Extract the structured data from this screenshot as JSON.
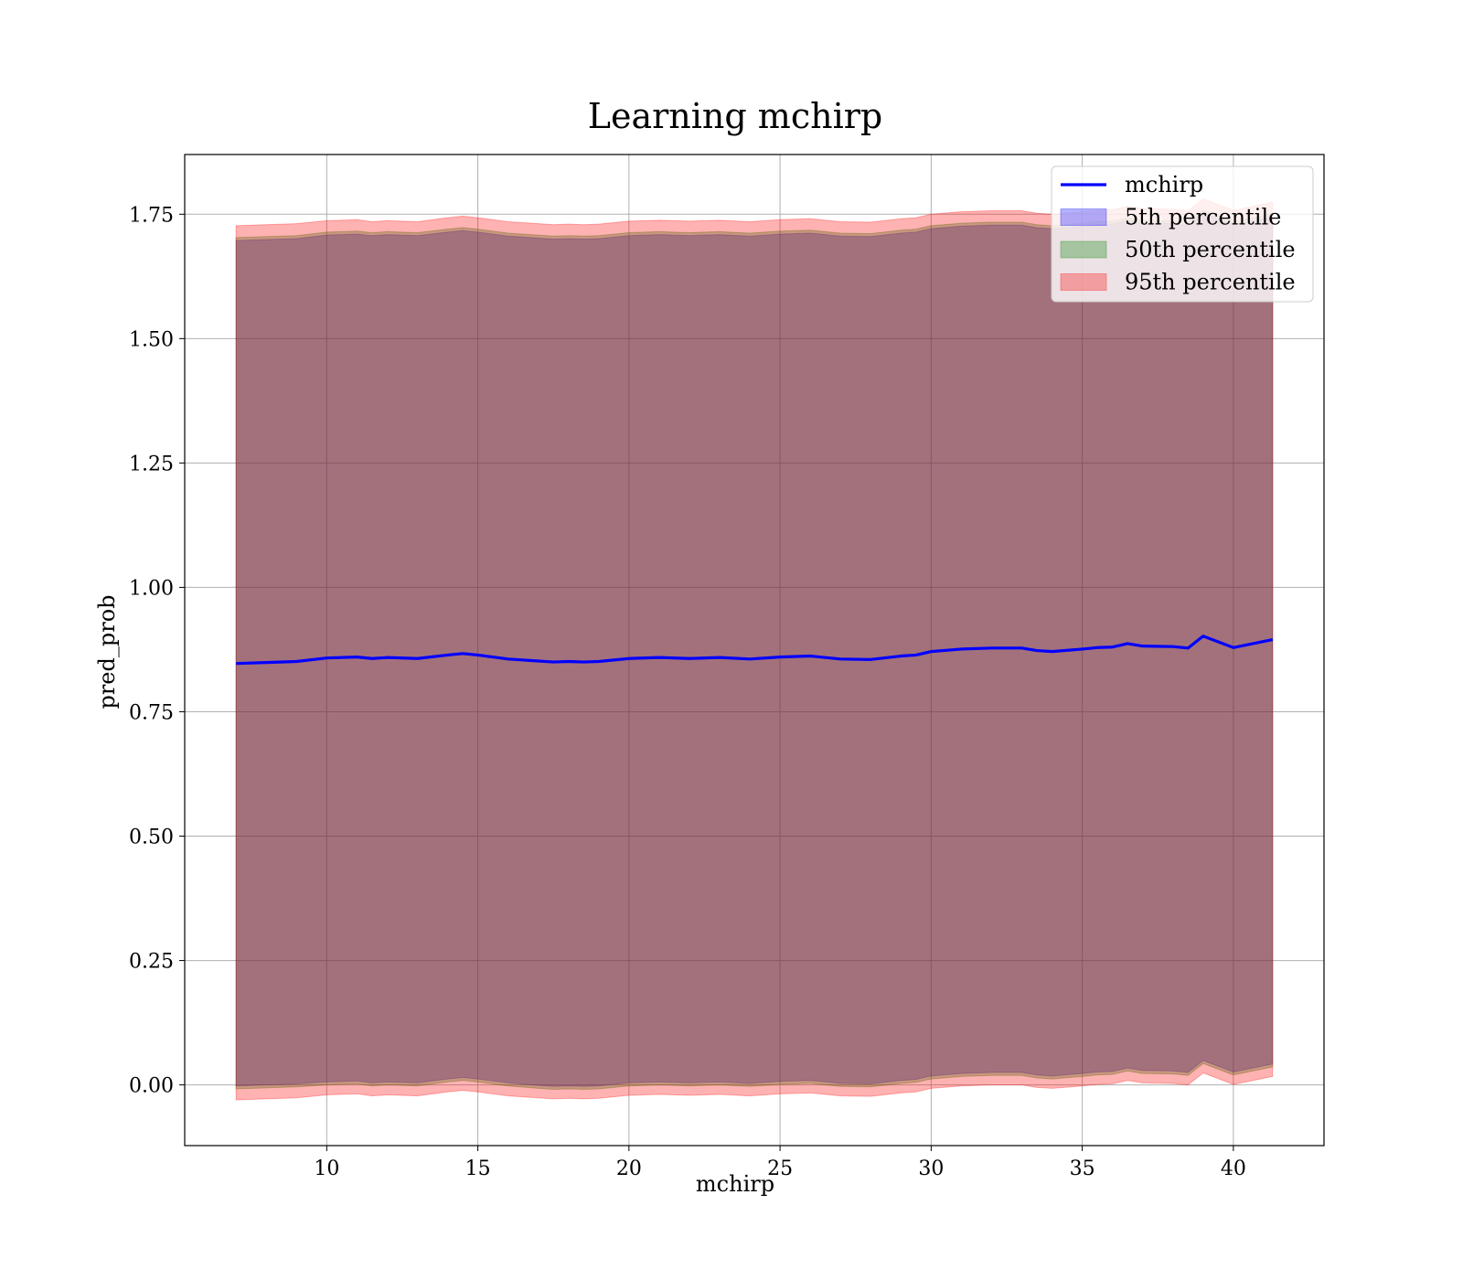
{
  "chart_data": {
    "type": "area",
    "title": "Learning mchirp",
    "xlabel": "mchirp",
    "ylabel": "pred_prob",
    "xlim": [
      5.3,
      43.0
    ],
    "ylim": [
      -0.122,
      1.87
    ],
    "grid": true,
    "legend_position": "top-right",
    "xticks": [
      10,
      15,
      20,
      25,
      30,
      35,
      40
    ],
    "xtick_labels": [
      "10",
      "15",
      "20",
      "25",
      "30",
      "35",
      "40"
    ],
    "yticks": [
      0.0,
      0.25,
      0.5,
      0.75,
      1.0,
      1.25,
      1.5,
      1.75
    ],
    "ytick_labels": [
      "0.00",
      "0.25",
      "0.50",
      "0.75",
      "1.00",
      "1.25",
      "1.50",
      "1.75"
    ],
    "x": [
      7.0,
      8.0,
      9.0,
      10.0,
      11.0,
      11.5,
      12.0,
      13.0,
      14.0,
      14.5,
      15.0,
      16.0,
      17.0,
      17.5,
      18.0,
      18.5,
      19.0,
      20.0,
      21.0,
      22.0,
      23.0,
      24.0,
      25.0,
      26.0,
      27.0,
      28.0,
      29.0,
      29.5,
      30.0,
      31.0,
      32.0,
      33.0,
      33.5,
      34.0,
      35.0,
      35.5,
      36.0,
      36.5,
      37.0,
      38.0,
      38.5,
      39.0,
      40.0,
      41.3
    ],
    "series": [
      {
        "name": "mchirp",
        "kind": "line",
        "color": "#0000ff",
        "values": [
          0.847,
          0.849,
          0.851,
          0.858,
          0.86,
          0.857,
          0.859,
          0.857,
          0.864,
          0.867,
          0.864,
          0.856,
          0.852,
          0.85,
          0.851,
          0.85,
          0.851,
          0.857,
          0.859,
          0.857,
          0.859,
          0.856,
          0.86,
          0.862,
          0.856,
          0.855,
          0.862,
          0.864,
          0.871,
          0.876,
          0.878,
          0.878,
          0.873,
          0.871,
          0.876,
          0.879,
          0.88,
          0.887,
          0.882,
          0.881,
          0.878,
          0.902,
          0.879,
          0.895
        ]
      },
      {
        "name": "5th percentile",
        "kind": "band",
        "color": "#0000ff",
        "lower": [
          -0.002,
          0.0,
          0.002,
          0.006,
          0.008,
          0.004,
          0.006,
          0.004,
          0.012,
          0.015,
          0.012,
          0.004,
          -0.001,
          -0.003,
          -0.002,
          -0.003,
          -0.002,
          0.004,
          0.006,
          0.004,
          0.006,
          0.003,
          0.007,
          0.009,
          0.003,
          0.002,
          0.009,
          0.011,
          0.018,
          0.023,
          0.025,
          0.025,
          0.02,
          0.018,
          0.023,
          0.026,
          0.027,
          0.034,
          0.029,
          0.028,
          0.025,
          0.049,
          0.026,
          0.042
        ],
        "upper": [
          1.697,
          1.699,
          1.701,
          1.708,
          1.71,
          1.707,
          1.709,
          1.707,
          1.714,
          1.717,
          1.714,
          1.706,
          1.702,
          1.7,
          1.701,
          1.7,
          1.701,
          1.707,
          1.709,
          1.707,
          1.709,
          1.706,
          1.71,
          1.712,
          1.706,
          1.705,
          1.712,
          1.714,
          1.721,
          1.726,
          1.728,
          1.728,
          1.723,
          1.721,
          1.726,
          1.729,
          1.73,
          1.737,
          1.732,
          1.731,
          1.728,
          1.752,
          1.729,
          1.745
        ]
      },
      {
        "name": "50th percentile",
        "kind": "band",
        "color": "#008000",
        "lower": [
          -0.008,
          -0.006,
          -0.004,
          0.0,
          0.002,
          -0.002,
          0.0,
          -0.002,
          0.006,
          0.009,
          0.006,
          -0.002,
          -0.007,
          -0.009,
          -0.008,
          -0.009,
          -0.008,
          -0.002,
          0.0,
          -0.002,
          0.0,
          -0.003,
          0.001,
          0.003,
          -0.003,
          -0.004,
          0.003,
          0.005,
          0.012,
          0.017,
          0.019,
          0.019,
          0.014,
          0.012,
          0.017,
          0.02,
          0.021,
          0.028,
          0.023,
          0.022,
          0.019,
          0.043,
          0.02,
          0.036
        ],
        "upper": [
          1.703,
          1.705,
          1.707,
          1.714,
          1.716,
          1.713,
          1.715,
          1.713,
          1.72,
          1.723,
          1.72,
          1.712,
          1.708,
          1.706,
          1.707,
          1.706,
          1.707,
          1.713,
          1.715,
          1.713,
          1.715,
          1.712,
          1.716,
          1.718,
          1.712,
          1.711,
          1.718,
          1.72,
          1.727,
          1.732,
          1.734,
          1.734,
          1.729,
          1.727,
          1.732,
          1.735,
          1.736,
          1.743,
          1.738,
          1.737,
          1.734,
          1.758,
          1.735,
          1.751
        ]
      },
      {
        "name": "95th percentile",
        "kind": "band",
        "color": "#ff0000",
        "lower": [
          -0.03,
          -0.028,
          -0.026,
          -0.02,
          -0.018,
          -0.022,
          -0.02,
          -0.022,
          -0.014,
          -0.011,
          -0.014,
          -0.022,
          -0.026,
          -0.028,
          -0.027,
          -0.028,
          -0.027,
          -0.021,
          -0.019,
          -0.021,
          -0.019,
          -0.022,
          -0.018,
          -0.016,
          -0.022,
          -0.023,
          -0.016,
          -0.014,
          -0.007,
          -0.002,
          0.0,
          0.0,
          -0.005,
          -0.007,
          -0.002,
          0.001,
          0.002,
          0.009,
          0.004,
          0.003,
          0.0,
          0.024,
          0.001,
          0.017
        ],
        "upper": [
          1.727,
          1.729,
          1.731,
          1.737,
          1.739,
          1.735,
          1.737,
          1.735,
          1.743,
          1.746,
          1.743,
          1.735,
          1.731,
          1.729,
          1.73,
          1.729,
          1.73,
          1.736,
          1.738,
          1.736,
          1.738,
          1.735,
          1.739,
          1.741,
          1.735,
          1.734,
          1.741,
          1.743,
          1.75,
          1.755,
          1.757,
          1.757,
          1.752,
          1.75,
          1.755,
          1.758,
          1.759,
          1.766,
          1.761,
          1.76,
          1.757,
          1.781,
          1.758,
          1.774
        ]
      }
    ]
  }
}
